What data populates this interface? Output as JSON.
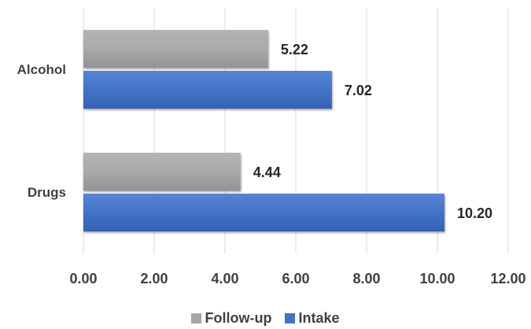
{
  "chart_data": {
    "type": "bar",
    "orientation": "horizontal",
    "categories": [
      "Alcohol",
      "Drugs"
    ],
    "series": [
      {
        "name": "Follow-up",
        "values": [
          5.22,
          4.44
        ],
        "labels": [
          "5.22",
          "4.44"
        ],
        "color": "#a6a6a6"
      },
      {
        "name": "Intake",
        "values": [
          7.02,
          10.2
        ],
        "labels": [
          "7.02",
          "10.20"
        ],
        "color": "#4472c4"
      }
    ],
    "xlim": [
      0,
      12
    ],
    "x_ticks": [
      0,
      2,
      4,
      6,
      8,
      10,
      12
    ],
    "x_tick_labels": [
      "0.00",
      "2.00",
      "4.00",
      "6.00",
      "8.00",
      "10.00",
      "12.00"
    ],
    "grid": "vertical",
    "legend_position": "bottom"
  }
}
